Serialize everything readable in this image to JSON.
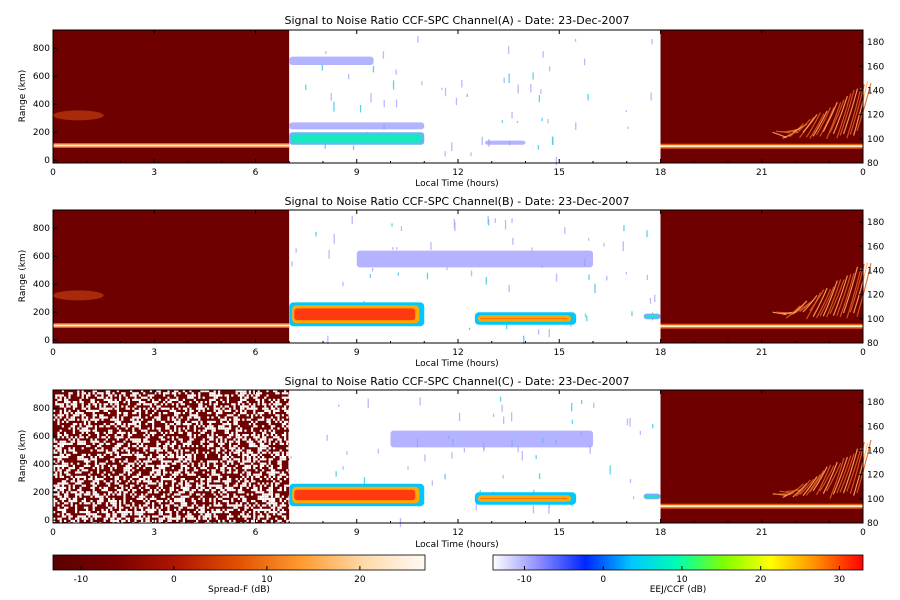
{
  "panels": [
    {
      "title": "Signal to Noise Ratio CCF-SPC Channel(A) - Date: 23-Dec-2007"
    },
    {
      "title": "Signal to Noise Ratio CCF-SPC Channel(B) - Date: 23-Dec-2007"
    },
    {
      "title": "Signal to Noise Ratio CCF-SPC Channel(C) - Date: 23-Dec-2007"
    }
  ],
  "axes": {
    "xlabel": "Local Time (hours)",
    "ylabel": "Range (km)"
  },
  "colorbars": [
    {
      "label": "Spread-F (dB)",
      "range": [
        -13,
        27
      ],
      "ticks": [
        "-10",
        "0",
        "10",
        "20"
      ],
      "colors": [
        "#5a0000",
        "#7a0000",
        "#b11600",
        "#e25200",
        "#ff9a30",
        "#ffd9a8",
        "#fffaf4"
      ]
    },
    {
      "label": "EEJ/CCF (dB)",
      "range": [
        -14,
        33
      ],
      "ticks": [
        "-10",
        "0",
        "10",
        "20",
        "30"
      ],
      "colors": [
        "#ffffff",
        "#8c8cff",
        "#0026ff",
        "#00c8ff",
        "#00ffb0",
        "#80ff00",
        "#ffff00",
        "#ff8c00",
        "#ff0000"
      ]
    }
  ],
  "chart_data": [
    {
      "type": "heatmap",
      "title": "Signal to Noise Ratio CCF-SPC Channel(A) - Date: 23-Dec-2007",
      "xlabel": "Local Time (hours)",
      "ylabel": "Range (km)",
      "xlim": [
        0,
        24
      ],
      "ylim": [
        -20,
        930
      ],
      "y2lim": [
        80,
        190
      ],
      "xticks": [
        "0",
        "3",
        "6",
        "9",
        "12",
        "15",
        "18",
        "21",
        "0"
      ],
      "yticks": [
        0,
        200,
        400,
        600,
        800
      ],
      "y2ticks": [
        80,
        100,
        120,
        140,
        160,
        180
      ],
      "regions": [
        {
          "x": [
            0,
            7
          ],
          "scale": "Spread-F (dB)",
          "features": [
            {
              "range_km": 105,
              "description": "bright horizontal echo layer"
            },
            {
              "range_km": 320,
              "x": [
                0,
                1.5
              ],
              "description": "faint echo"
            }
          ]
        },
        {
          "x": [
            7,
            18
          ],
          "scale": "EEJ/CCF (dB)",
          "features": [
            {
              "x": [
                7,
                11
              ],
              "range_km": [
                110,
                200
              ],
              "level": "medium"
            },
            {
              "x": [
                7,
                11
              ],
              "range_km": [
                220,
                270
              ],
              "level": "low"
            },
            {
              "x": [
                7,
                9.5
              ],
              "range_km": [
                680,
                740
              ],
              "level": "low"
            },
            {
              "x": [
                12.8,
                14
              ],
              "range_km": [
                110,
                140
              ],
              "level": "low"
            }
          ]
        },
        {
          "x": [
            18,
            24
          ],
          "scale": "Spread-F (dB)",
          "features": [
            {
              "range_km": 100,
              "description": "bright horizontal echo layer"
            },
            {
              "x": [
                21.5,
                24
              ],
              "range_km": [
                150,
                550
              ],
              "description": "rising spread-F plume"
            }
          ]
        }
      ]
    },
    {
      "type": "heatmap",
      "title": "Signal to Noise Ratio CCF-SPC Channel(B) - Date: 23-Dec-2007",
      "xlabel": "Local Time (hours)",
      "ylabel": "Range (km)",
      "xlim": [
        0,
        24
      ],
      "ylim": [
        -20,
        930
      ],
      "y2lim": [
        80,
        190
      ],
      "xticks": [
        "0",
        "3",
        "6",
        "9",
        "12",
        "15",
        "18",
        "21",
        "0"
      ],
      "yticks": [
        0,
        200,
        400,
        600,
        800
      ],
      "y2ticks": [
        80,
        100,
        120,
        140,
        160,
        180
      ],
      "regions": [
        {
          "x": [
            0,
            7
          ],
          "scale": "Spread-F (dB)",
          "features": [
            {
              "range_km": 105,
              "description": "bright horizontal echo layer"
            },
            {
              "range_km": 320,
              "x": [
                0,
                1.5
              ],
              "description": "faint echo"
            }
          ]
        },
        {
          "x": [
            7,
            18
          ],
          "scale": "EEJ/CCF (dB)",
          "features": [
            {
              "x": [
                7,
                11
              ],
              "range_km": [
                100,
                270
              ],
              "level": "high"
            },
            {
              "x": [
                12.5,
                15.5
              ],
              "range_km": [
                110,
                200
              ],
              "level": "high"
            },
            {
              "x": [
                9,
                16
              ],
              "range_km": [
                520,
                640
              ],
              "level": "low"
            },
            {
              "x": [
                17.5,
                18
              ],
              "range_km": [
                150,
                190
              ],
              "level": "medium"
            }
          ]
        },
        {
          "x": [
            18,
            24
          ],
          "scale": "Spread-F (dB)",
          "features": [
            {
              "range_km": 100,
              "description": "bright horizontal echo layer"
            },
            {
              "x": [
                21.5,
                24
              ],
              "range_km": [
                150,
                550
              ],
              "description": "rising spread-F plume"
            }
          ]
        }
      ]
    },
    {
      "type": "heatmap",
      "title": "Signal to Noise Ratio CCF-SPC Channel(C) - Date: 23-Dec-2007",
      "xlabel": "Local Time (hours)",
      "ylabel": "Range (km)",
      "xlim": [
        0,
        24
      ],
      "ylim": [
        -20,
        930
      ],
      "y2lim": [
        80,
        190
      ],
      "xticks": [
        "0",
        "3",
        "6",
        "9",
        "12",
        "15",
        "18",
        "21",
        "0"
      ],
      "yticks": [
        0,
        200,
        400,
        600,
        800
      ],
      "y2ticks": [
        80,
        100,
        120,
        140,
        160,
        180
      ],
      "regions": [
        {
          "x": [
            0,
            7
          ],
          "scale": "Spread-F (dB)",
          "features": [
            {
              "description": "random noise (no signal)"
            }
          ]
        },
        {
          "x": [
            7,
            18
          ],
          "scale": "EEJ/CCF (dB)",
          "features": [
            {
              "x": [
                7,
                11
              ],
              "range_km": [
                100,
                260
              ],
              "level": "high"
            },
            {
              "x": [
                12.5,
                15.5
              ],
              "range_km": [
                110,
                200
              ],
              "level": "high"
            },
            {
              "x": [
                10,
                16
              ],
              "range_km": [
                520,
                640
              ],
              "level": "low"
            },
            {
              "x": [
                17.5,
                18
              ],
              "range_km": [
                150,
                190
              ],
              "level": "medium"
            }
          ]
        },
        {
          "x": [
            18,
            24
          ],
          "scale": "Spread-F (dB)",
          "features": [
            {
              "range_km": 100,
              "description": "bright horizontal echo layer"
            },
            {
              "x": [
                21.5,
                24
              ],
              "range_km": [
                150,
                550
              ],
              "description": "rising spread-F plume"
            }
          ]
        }
      ]
    }
  ]
}
